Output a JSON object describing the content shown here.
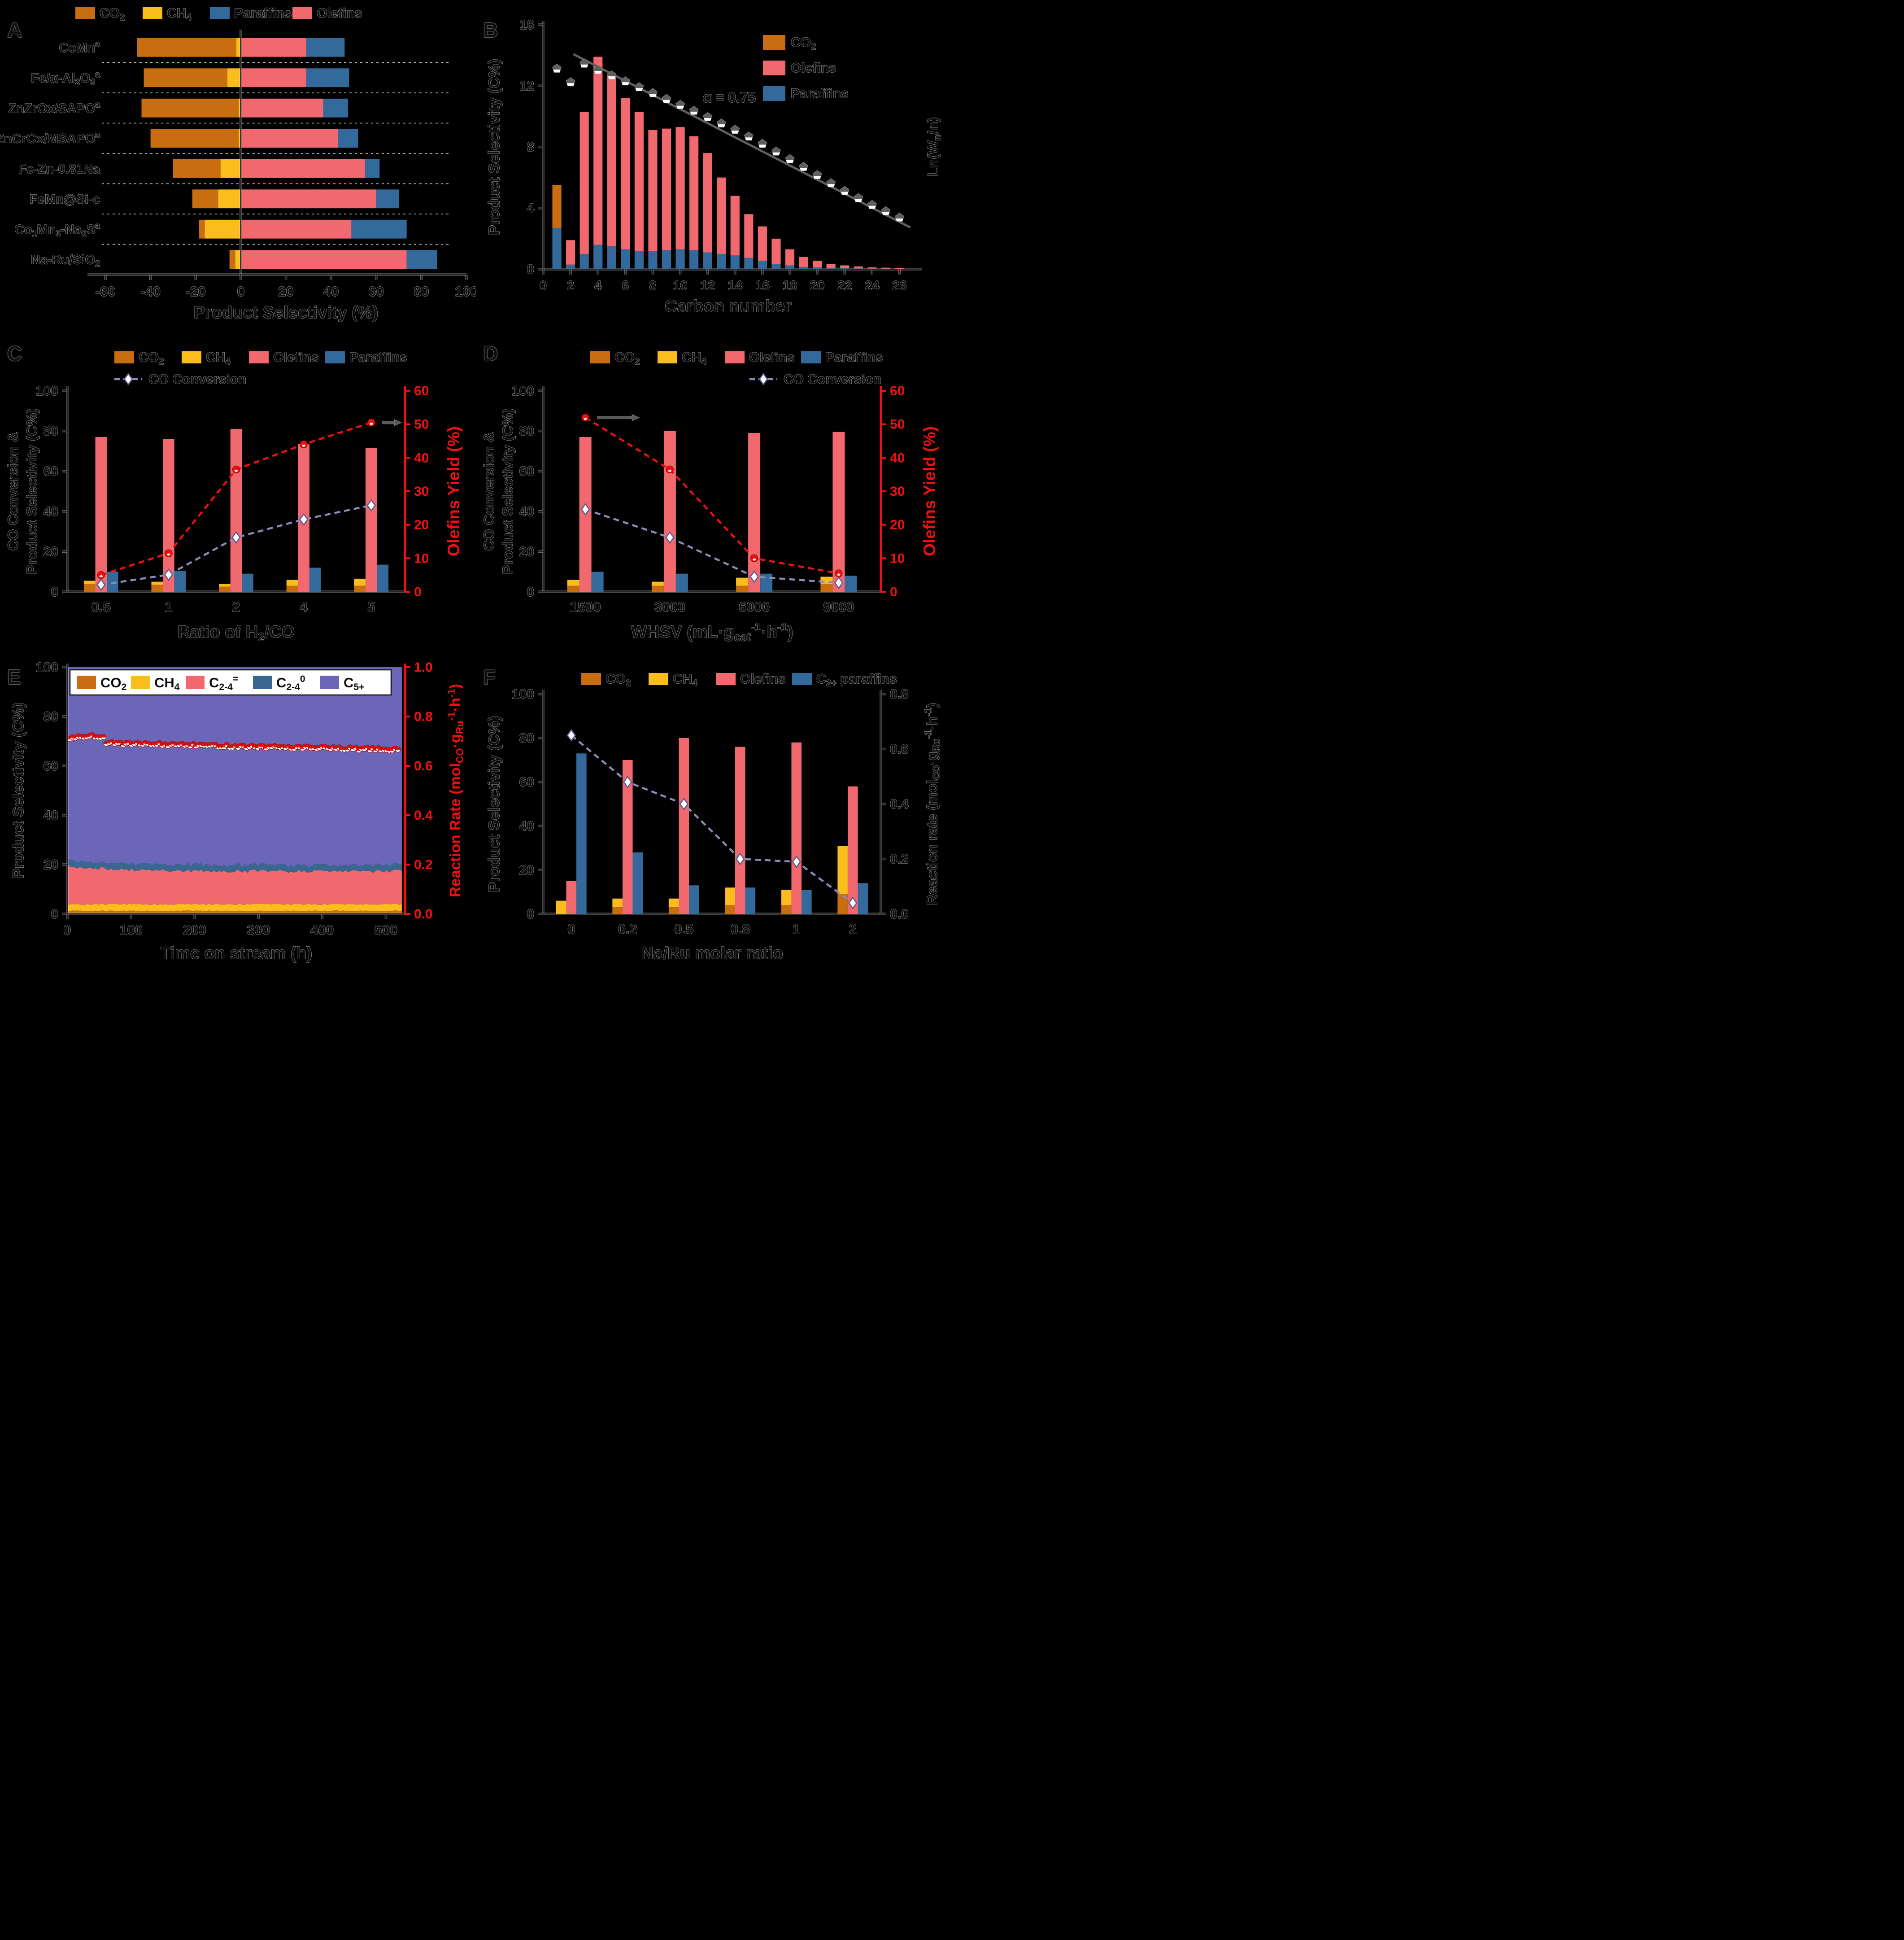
{
  "colors": {
    "co2": "#C96E10",
    "ch4": "#FBBC1E",
    "olefins": "#F1696E",
    "paraffins": "#34699B",
    "c24_paraffin_band": "#38688F",
    "c5plus": "#6B66B8",
    "co_conversion_line": "#8B8BB8",
    "diamond_stroke": "#5C5C94",
    "yield_line": "#F01010",
    "red_axis": "#F01010",
    "asf_gray": "#5E5E5E",
    "rate_dot": "#E01010",
    "ink": "#0d0d0d",
    "background": "#000000"
  },
  "chart_data": [
    {
      "panel": "A",
      "type": "bar",
      "orientation": "horizontal-diverging",
      "xlabel": "Product Selectivity (%)",
      "xticks": [
        -60,
        -40,
        -20,
        0,
        20,
        40,
        60,
        80,
        100
      ],
      "legend": [
        {
          "label": "CO~2~",
          "key": "co2"
        },
        {
          "label": "CH~4~",
          "key": "ch4"
        },
        {
          "label": "Paraffins",
          "key": "paraffins"
        },
        {
          "label": "Olefins",
          "key": "olefins"
        }
      ],
      "categories": [
        "CoMn^a^",
        "Fe/α-Al~2~O~3~^a^",
        "ZnZrOx/SAPO^a^",
        "ZnCrOx/MSAPO^a^",
        "Fe-Zn-0.81Na",
        "FeMn@Si-c",
        "Co~1~Mn~3~-Na~2~S^a^",
        "Na-Ru/SiO~2~"
      ],
      "series": {
        "co2": [
          44,
          37,
          43,
          39,
          21,
          11.5,
          2.5,
          2.5
        ],
        "ch4": [
          2,
          6,
          1,
          1,
          9,
          10,
          16,
          2.5
        ],
        "olefins": [
          29,
          29,
          36.5,
          43,
          55,
          60,
          49,
          73.5
        ],
        "paraffins": [
          17,
          19,
          11,
          9,
          6.5,
          10,
          24.5,
          13.5
        ]
      }
    },
    {
      "panel": "B",
      "type": "bar",
      "xlabel": "Carbon number",
      "ylabel": "Product Selectivity (C%)",
      "y2label": "Ln(W~n~/n)",
      "yticks": [
        0,
        4,
        8,
        12,
        16
      ],
      "xticks": [
        0,
        2,
        4,
        6,
        8,
        10,
        12,
        14,
        16,
        18,
        20,
        22,
        24,
        26
      ],
      "ylim": [
        0,
        16
      ],
      "annotation": "α = 0.75",
      "legend": [
        {
          "label": "CO~2~",
          "key": "co2"
        },
        {
          "label": "Olefins",
          "key": "olefins"
        },
        {
          "label": "Paraffins",
          "key": "paraffins"
        }
      ],
      "carbon": [
        1,
        2,
        3,
        4,
        5,
        6,
        7,
        8,
        9,
        10,
        11,
        12,
        13,
        14,
        15,
        16,
        17,
        18,
        19,
        20,
        21,
        22,
        23,
        24,
        25,
        26
      ],
      "paraffins": [
        2.7,
        0.3,
        1.0,
        1.6,
        1.5,
        1.3,
        1.2,
        1.2,
        1.25,
        1.3,
        1.25,
        1.1,
        1.0,
        0.9,
        0.75,
        0.55,
        0.35,
        0.25,
        0.15,
        0.12,
        0.08,
        0.06,
        0.05,
        0.04,
        0.03,
        0.02
      ],
      "olefins": [
        0,
        1.6,
        9.3,
        12.3,
        11.2,
        9.9,
        9.1,
        7.9,
        7.95,
        8.0,
        7.45,
        6.5,
        5.0,
        3.9,
        2.85,
        2.25,
        1.65,
        1.05,
        0.65,
        0.43,
        0.27,
        0.19,
        0.13,
        0.08,
        0.07,
        0.06
      ],
      "co2_at_c1": 2.8,
      "asf_ln": [
        -1.77,
        -2.07,
        -1.66,
        -1.8,
        -1.92,
        -2.05,
        -2.18,
        -2.31,
        -2.44,
        -2.57,
        -2.7,
        -2.84,
        -2.98,
        -3.12,
        -3.27,
        -3.43,
        -3.6,
        -3.77,
        -3.94,
        -4.12,
        -4.3,
        -4.47,
        -4.63,
        -4.78,
        -4.92,
        -5.06
      ],
      "asf_line": {
        "x1": 2.2,
        "v1": -1.45,
        "x2": 26.8,
        "v2": -5.28
      },
      "asf_ln_range": [
        -0.8,
        -6.2
      ]
    },
    {
      "panel": "C",
      "type": "bar",
      "xlabel": "Ratio of H~2~/CO",
      "ylabel_line1": "CO Conversion &",
      "ylabel_line2": "Product Selectivity (C%)",
      "y2label": "Olefins Yield (%)",
      "categories": [
        "0.5",
        "1",
        "2",
        "4",
        "5"
      ],
      "yticks": [
        0,
        20,
        40,
        60,
        80,
        100
      ],
      "y2ticks": [
        0,
        10,
        20,
        30,
        40,
        50,
        60
      ],
      "legend": [
        {
          "label": "CO~2~",
          "key": "co2"
        },
        {
          "label": "CH~4~",
          "key": "ch4"
        },
        {
          "label": "Olefins",
          "key": "olefins"
        },
        {
          "label": "Paraffins",
          "key": "paraffins"
        }
      ],
      "line_legend": "CO Conversion",
      "co2": [
        4,
        3.5,
        2.5,
        3,
        3
      ],
      "ch4": [
        1.5,
        1.5,
        1.5,
        3,
        3.5
      ],
      "olefins": [
        77,
        76,
        81,
        73.5,
        71.5
      ],
      "paraffins": [
        10,
        10.5,
        9,
        12,
        13.5
      ],
      "co_conversion": [
        3.5,
        8.5,
        27,
        36,
        43
      ],
      "olefins_yield": [
        5,
        11.5,
        36.5,
        44,
        50.5
      ],
      "arrow": "end"
    },
    {
      "panel": "D",
      "type": "bar",
      "xlabel": "WHSV (mL·g~cat~^-1^·h^-1^)",
      "ylabel_line1": "CO Conversion &",
      "ylabel_line2": "Product Selectivity (C%)",
      "y2label": "Olefins Yield (%)",
      "categories": [
        "1500",
        "3000",
        "6000",
        "9000"
      ],
      "yticks": [
        0,
        20,
        40,
        60,
        80,
        100
      ],
      "y2ticks": [
        0,
        10,
        20,
        30,
        40,
        50,
        60
      ],
      "legend": [
        {
          "label": "CO~2~",
          "key": "co2"
        },
        {
          "label": "CH~4~",
          "key": "ch4"
        },
        {
          "label": "Olefins",
          "key": "olefins"
        },
        {
          "label": "Paraffins",
          "key": "paraffins"
        }
      ],
      "line_legend": "CO Conversion",
      "co2": [
        3,
        3,
        3,
        4
      ],
      "ch4": [
        3,
        2,
        4,
        3.5
      ],
      "olefins": [
        77,
        80,
        79,
        79.5
      ],
      "paraffins": [
        10,
        9,
        9,
        8
      ],
      "co_conversion": [
        41,
        27,
        7.5,
        4.5
      ],
      "olefins_yield": [
        52,
        36.5,
        10,
        5.5
      ],
      "arrow": "start"
    },
    {
      "panel": "E",
      "type": "area",
      "xlabel": "Time on stream (h)",
      "ylabel": "Product Selectivity (C%)",
      "y2label": "Reaction Rate  (mol~CO~·g~Ru~^-1^·h^-1^)",
      "xticks": [
        0,
        100,
        200,
        300,
        400,
        500
      ],
      "yticks": [
        0,
        20,
        40,
        60,
        80,
        100
      ],
      "y2ticks": [
        0.0,
        0.2,
        0.4,
        0.6,
        0.8,
        1.0
      ],
      "xmax": 530,
      "legend": [
        {
          "label": "CO~2~",
          "key": "co2"
        },
        {
          "label": "CH~4~",
          "key": "ch4"
        },
        {
          "label": "C~2-4~^=^",
          "key": "olefins"
        },
        {
          "label": "C~2-4~^0^",
          "key": "c24_paraffin_band"
        },
        {
          "label": "C~5+~",
          "key": "c5plus"
        }
      ],
      "bands": {
        "co2_top": 1.25,
        "ch4_top": 3.9,
        "c24_olefin_top": 17.3,
        "c24_olefin_top_start": 19.6,
        "c24_paraffin_thickness": 2.5
      },
      "rate_start": 0.71,
      "rate_end": 0.665
    },
    {
      "panel": "F",
      "type": "bar",
      "xlabel": "Na/Ru molar ratio",
      "ylabel": "Product Selectivity (C%)",
      "y2label": "Reaction rate (mol~CO~·g~Ru~^-1^·h^-1^)",
      "categories": [
        "0",
        "0.2",
        "0.5",
        "0.8",
        "1",
        "2"
      ],
      "yticks": [
        0,
        20,
        40,
        60,
        80,
        100
      ],
      "y2ticks": [
        0.0,
        0.2,
        0.4,
        0.6,
        0.8
      ],
      "legend": [
        {
          "label": "CO~2~",
          "key": "co2"
        },
        {
          "label": "CH~4~",
          "key": "ch4"
        },
        {
          "label": "Olefins",
          "key": "olefins"
        },
        {
          "label": "C~2+~ paraffins",
          "key": "paraffins"
        }
      ],
      "co2": [
        0,
        3,
        3,
        4,
        4,
        9
      ],
      "ch4": [
        6,
        4,
        4,
        8,
        7,
        22
      ],
      "olefins": [
        15,
        70,
        80,
        76,
        78,
        58
      ],
      "paraffins": [
        73,
        28,
        13,
        12,
        11,
        14
      ],
      "reaction_rate": [
        0.65,
        0.48,
        0.4,
        0.2,
        0.19,
        0.04
      ]
    }
  ]
}
